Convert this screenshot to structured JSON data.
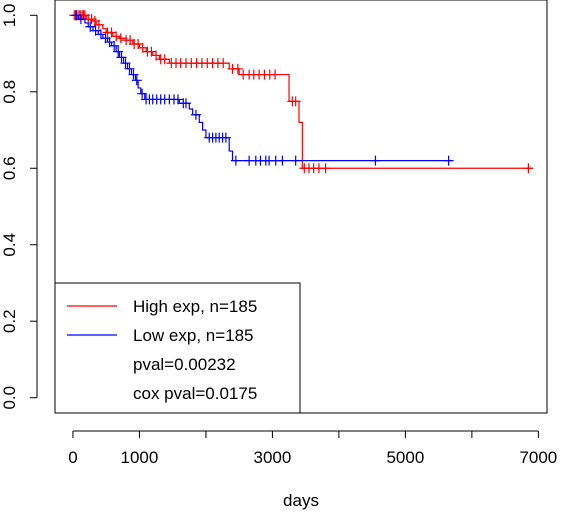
{
  "chart_data": {
    "type": "line",
    "subtype": "kaplan-meier",
    "title": "",
    "xlabel": "days",
    "ylabel": "",
    "xlim": [
      0,
      7000
    ],
    "ylim": [
      0.0,
      1.0
    ],
    "x_ticks": [
      0,
      1000,
      3000,
      5000,
      7000
    ],
    "x_tick_marks": [
      0,
      1000,
      2000,
      3000,
      4000,
      5000,
      6000,
      7000
    ],
    "y_ticks": [
      0.0,
      0.2,
      0.4,
      0.6,
      0.8,
      1.0
    ],
    "y_tick_labels": [
      "0.0",
      "0.2",
      "0.4",
      "0.6",
      "0.8",
      "1.0"
    ],
    "grid": false,
    "legend_position": "bottom-left",
    "series": [
      {
        "name": "High exp, n=185",
        "color": "#ff0000",
        "steps": [
          [
            0,
            1.0
          ],
          [
            200,
            0.99
          ],
          [
            300,
            0.985
          ],
          [
            350,
            0.975
          ],
          [
            450,
            0.965
          ],
          [
            500,
            0.955
          ],
          [
            600,
            0.945
          ],
          [
            700,
            0.94
          ],
          [
            800,
            0.935
          ],
          [
            900,
            0.925
          ],
          [
            1000,
            0.915
          ],
          [
            1100,
            0.905
          ],
          [
            1200,
            0.895
          ],
          [
            1300,
            0.885
          ],
          [
            1450,
            0.875
          ],
          [
            2350,
            0.86
          ],
          [
            2500,
            0.845
          ],
          [
            3250,
            0.775
          ],
          [
            3400,
            0.72
          ],
          [
            3450,
            0.6
          ],
          [
            6900,
            0.6
          ]
        ],
        "censor_x": [
          20,
          40,
          60,
          90,
          110,
          140,
          160,
          180,
          230,
          280,
          330,
          390,
          520,
          580,
          650,
          720,
          800,
          860,
          920,
          980,
          1050,
          1120,
          1180,
          1250,
          1320,
          1380,
          1480,
          1550,
          1620,
          1700,
          1780,
          1860,
          1940,
          2020,
          2100,
          2180,
          2260,
          2400,
          2480,
          2560,
          2650,
          2720,
          2800,
          2880,
          2960,
          3040,
          3300,
          3350,
          3480,
          3550,
          3620,
          3700,
          3800,
          6850
        ]
      },
      {
        "name": "Low exp, n=185",
        "color": "#0000ff",
        "steps": [
          [
            0,
            1.0
          ],
          [
            80,
            0.99
          ],
          [
            180,
            0.98
          ],
          [
            230,
            0.97
          ],
          [
            300,
            0.96
          ],
          [
            380,
            0.95
          ],
          [
            450,
            0.94
          ],
          [
            520,
            0.93
          ],
          [
            580,
            0.92
          ],
          [
            650,
            0.905
          ],
          [
            700,
            0.89
          ],
          [
            760,
            0.875
          ],
          [
            820,
            0.86
          ],
          [
            880,
            0.845
          ],
          [
            940,
            0.83
          ],
          [
            980,
            0.81
          ],
          [
            1020,
            0.795
          ],
          [
            1080,
            0.78
          ],
          [
            1600,
            0.77
          ],
          [
            1750,
            0.755
          ],
          [
            1800,
            0.74
          ],
          [
            1900,
            0.72
          ],
          [
            1950,
            0.7
          ],
          [
            2000,
            0.68
          ],
          [
            2350,
            0.645
          ],
          [
            2400,
            0.62
          ],
          [
            5700,
            0.62
          ]
        ],
        "censor_x": [
          50,
          120,
          260,
          340,
          420,
          490,
          550,
          620,
          680,
          730,
          790,
          850,
          910,
          960,
          1040,
          1100,
          1150,
          1200,
          1260,
          1320,
          1380,
          1450,
          1520,
          1580,
          1660,
          1700,
          1850,
          2050,
          2100,
          2150,
          2200,
          2250,
          2300,
          2450,
          2650,
          2750,
          2820,
          2900,
          2950,
          3050,
          3150,
          3350,
          4550,
          5650
        ]
      }
    ],
    "legend": {
      "entries": [
        "High exp, n=185",
        "Low exp, n=185"
      ],
      "extra_text": [
        "pval=0.00232",
        "cox pval=0.0175"
      ]
    }
  }
}
